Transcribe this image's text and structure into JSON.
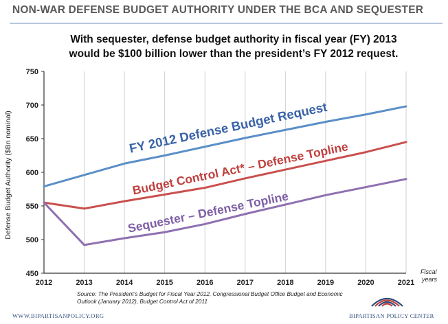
{
  "header": {
    "title": "NON-WAR DEFENSE BUDGET AUTHORITY UNDER THE BCA AND SEQUESTER"
  },
  "chart_data": {
    "type": "line",
    "title": "With sequester, defense budget authority in fiscal year (FY) 2013 would be $100 billion lower than the president’s FY 2012 request.",
    "title_lines": [
      "With sequester, defense budget authority in fiscal year (FY) 2013",
      "would be $100 billion lower than the president’s FY 2012 request."
    ],
    "ylabel": "Defense Budget Authority ($Bn nominal)",
    "xlabel_lines": [
      "Fiscal",
      "years"
    ],
    "x": [
      2012,
      2013,
      2014,
      2015,
      2016,
      2017,
      2018,
      2019,
      2020,
      2021
    ],
    "xlim": [
      2012,
      2021
    ],
    "ylim": [
      450,
      750
    ],
    "yticks": [
      450,
      500,
      550,
      600,
      650,
      700,
      750
    ],
    "grid": "vertical",
    "series": [
      {
        "name": "FY 2012 Defense Budget Request",
        "color": "#5b8fc7",
        "label_color": "#3a63a8",
        "values": [
          579,
          596,
          613,
          625,
          638,
          651,
          663,
          675,
          686,
          698
        ]
      },
      {
        "name": "Budget Control Act* – Defense Topline",
        "color": "#c9504e",
        "label_color": "#c0403e",
        "values": [
          555,
          546,
          557,
          567,
          577,
          591,
          604,
          617,
          630,
          645
        ]
      },
      {
        "name": "Sequester – Defense Topline",
        "color": "#8e6fb0",
        "label_color": "#7e5fa6",
        "values": [
          555,
          492,
          502,
          511,
          523,
          538,
          552,
          566,
          578,
          590
        ]
      }
    ]
  },
  "source": {
    "lines": [
      "Source: The President’s Budget for Fiscal Year 2012, Congressional Budget Office Budget and Economic",
      "Outlook (January 2012), Budget Control Act of 2011"
    ]
  },
  "footer": {
    "website": "WWW.BIPARTISANPOLICY.ORG",
    "org_name": "BIPARTISAN POLICY CENTER",
    "logo_colors": [
      "#2c4a7a",
      "#c0403e"
    ]
  }
}
